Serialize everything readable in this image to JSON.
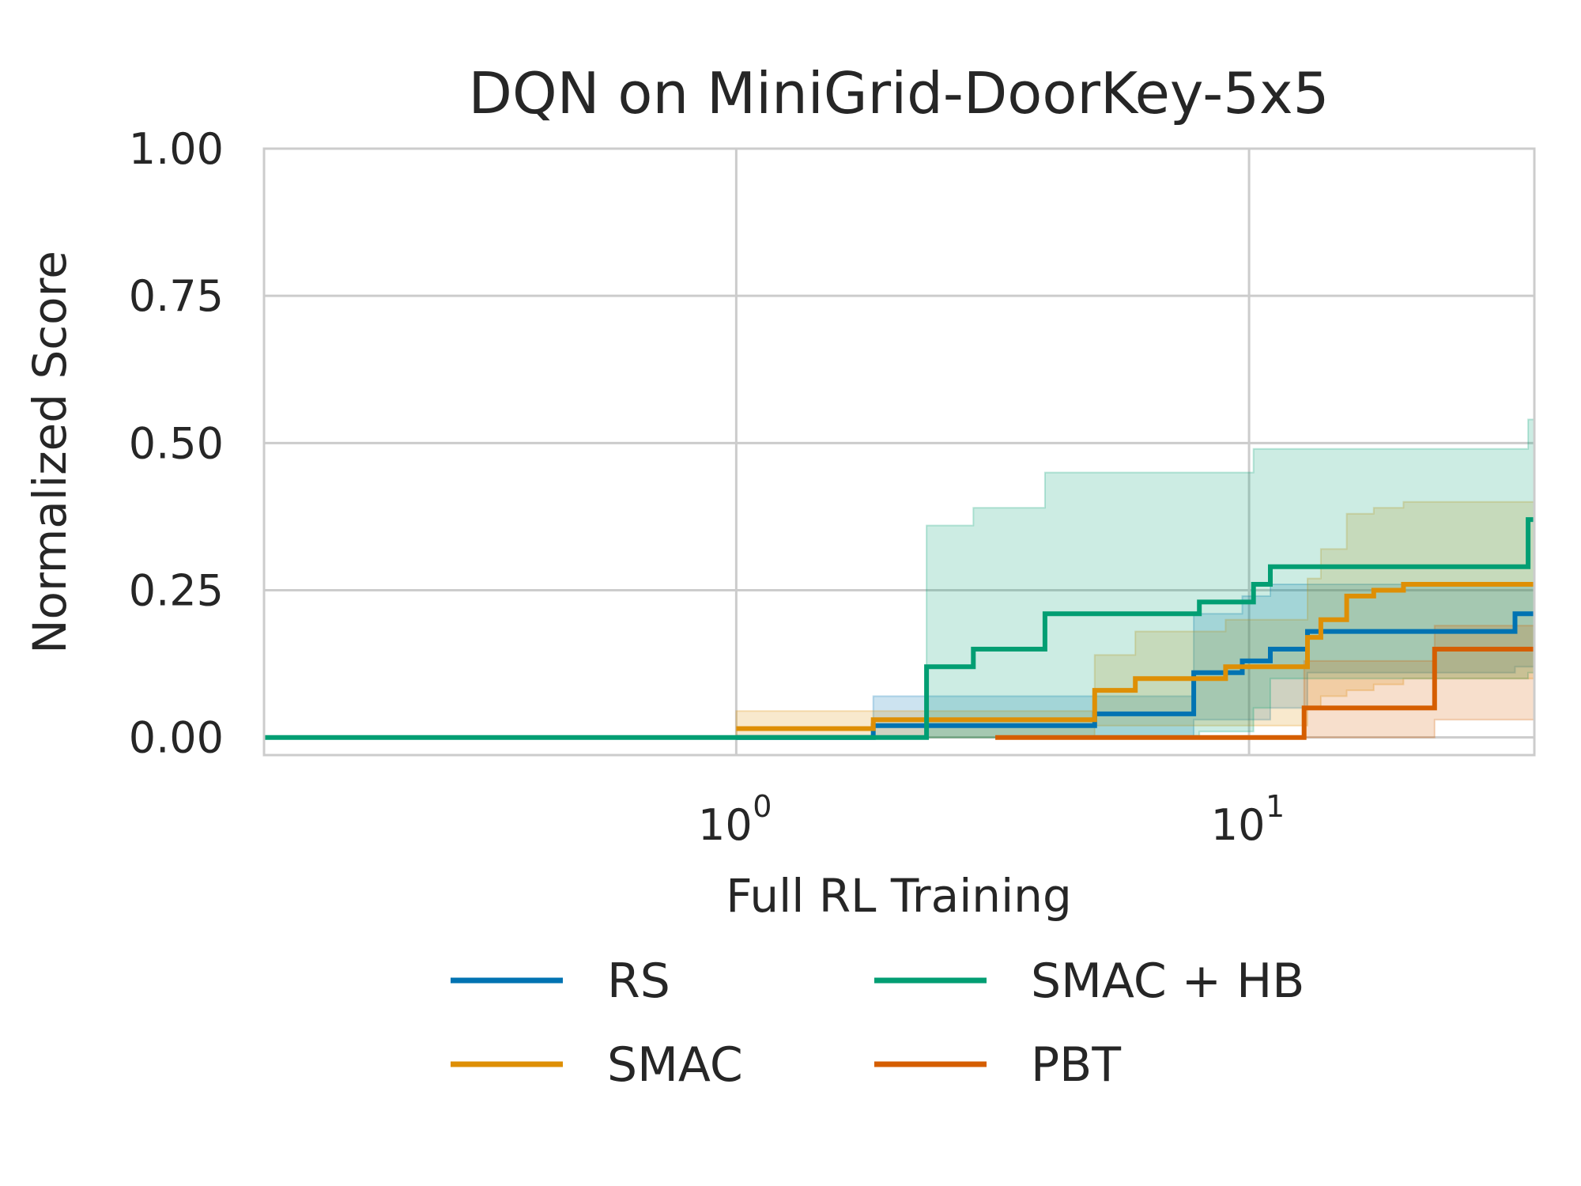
{
  "chart_data": {
    "type": "line",
    "title": "DQN on MiniGrid-DoorKey-5x5",
    "xlabel": "Full RL Training",
    "ylabel": "Normalized Score",
    "x_scale": "log",
    "xlim": [
      0.12,
      36
    ],
    "ylim": [
      -0.03,
      1.0
    ],
    "x_ticks": [
      {
        "value": 1,
        "base": "10",
        "exp": "0"
      },
      {
        "value": 10,
        "base": "10",
        "exp": "1"
      }
    ],
    "y_ticks": [
      {
        "value": 0.0,
        "label": "0.00"
      },
      {
        "value": 0.25,
        "label": "0.25"
      },
      {
        "value": 0.5,
        "label": "0.50"
      },
      {
        "value": 0.75,
        "label": "0.75"
      },
      {
        "value": 1.0,
        "label": "1.00"
      }
    ],
    "grid": true,
    "legend_position": "bottom",
    "series": [
      {
        "name": "RS",
        "color": "#0173b2",
        "x": [
          1.0,
          1.85,
          5.0,
          7.8,
          9.7,
          11.0,
          13.0,
          33.0,
          36.0
        ],
        "y": [
          0.0,
          0.02,
          0.04,
          0.11,
          0.13,
          0.15,
          0.18,
          0.21,
          0.21
        ],
        "band_upper": [
          0.0,
          0.07,
          0.07,
          0.21,
          0.24,
          0.26,
          0.26,
          0.26,
          0.26
        ],
        "band_lower": [
          0.0,
          0.0,
          0.0,
          0.03,
          0.03,
          0.05,
          0.11,
          0.12,
          0.12
        ]
      },
      {
        "name": "SMAC",
        "color": "#de8f05",
        "x": [
          1.0,
          1.85,
          5.0,
          6.0,
          9.0,
          13.0,
          13.8,
          15.5,
          17.5,
          20.0,
          36.0
        ],
        "y": [
          0.015,
          0.03,
          0.08,
          0.1,
          0.12,
          0.17,
          0.2,
          0.24,
          0.25,
          0.26,
          0.26
        ],
        "band_upper": [
          0.045,
          0.045,
          0.14,
          0.18,
          0.2,
          0.27,
          0.32,
          0.38,
          0.39,
          0.4,
          0.4
        ],
        "band_lower": [
          0.0,
          0.0,
          0.02,
          0.02,
          0.02,
          0.05,
          0.07,
          0.08,
          0.09,
          0.1,
          0.1
        ]
      },
      {
        "name": "SMAC + HB",
        "color": "#029e73",
        "x": [
          0.12,
          2.35,
          2.9,
          4.0,
          8.0,
          10.2,
          11.0,
          35.0,
          36.0
        ],
        "y": [
          0.0,
          0.12,
          0.15,
          0.21,
          0.23,
          0.26,
          0.29,
          0.37,
          0.37
        ],
        "band_upper": [
          0.0,
          0.36,
          0.39,
          0.45,
          0.45,
          0.49,
          0.49,
          0.54,
          0.54
        ],
        "band_lower": [
          0.0,
          0.0,
          0.0,
          0.0,
          0.01,
          0.05,
          0.1,
          0.11,
          0.11
        ]
      },
      {
        "name": "PBT",
        "color": "#d55e00",
        "x": [
          3.2,
          12.8,
          23.0,
          36.0
        ],
        "y": [
          0.0,
          0.05,
          0.15,
          0.15
        ],
        "band_upper": [
          0.0,
          0.13,
          0.19,
          0.19
        ],
        "band_lower": [
          0.0,
          0.0,
          0.03,
          0.03
        ]
      }
    ]
  }
}
